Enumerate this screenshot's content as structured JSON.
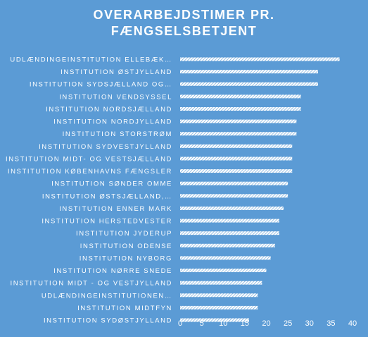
{
  "chart_data": {
    "type": "bar",
    "orientation": "horizontal",
    "title_lines": [
      "OVERARBEJDSTIMER  PR.",
      "FÆNGSELSBETJENT"
    ],
    "categories": [
      "UDLÆNDINGEINSTITUTION ELLEBÆK…",
      "INSTITUTION ØSTJYLLAND",
      "INSTITUTION SYDSJÆLLAND OG…",
      "INSTITUTION VENDSYSSEL",
      "INSTITUTION NORDSJÆLLAND",
      "INSTITUTION NORDJYLLAND",
      "INSTITUTION STORSTRØM",
      "INSTITUTION SYDVESTJYLLAND",
      "INSTITUTION MIDT- OG VESTSJÆLLAND",
      "INSTITUTION KØBENHAVNS FÆNGSLER",
      "INSTITUTION SØNDER OMME",
      "INSTITUTION ØSTSJÆLLAND,…",
      "INSTITUTION ENNER MARK",
      "INSTITUTION HERSTEDVESTER",
      "INSTITUTION JYDERUP",
      "INSTITUTION ODENSE",
      "INSTITUTION NYBORG",
      "INSTITUTION NØRRE SNEDE",
      "INSTITUTION MIDT - OG VESTJYLLAND",
      "UDLÆNDINGEINSTITUTIONEN…",
      "INSTITUTION MIDTFYN",
      "INSTITUTION SYDØSTJYLLAND"
    ],
    "values": [
      37,
      32,
      32,
      28,
      28,
      27,
      27,
      26,
      26,
      26,
      25,
      25,
      24,
      23,
      23,
      22,
      21,
      20,
      19,
      18,
      18,
      16
    ],
    "xlim": [
      0,
      40
    ],
    "xticks": [
      0,
      5,
      10,
      15,
      20,
      25,
      30,
      35,
      40
    ],
    "grid": false,
    "legend": "none",
    "colors": {
      "background": "#5b9bd5",
      "bar_fill": "#ffffff",
      "bar_hatch": "#5b9bd5",
      "text": "#ffffff"
    }
  }
}
